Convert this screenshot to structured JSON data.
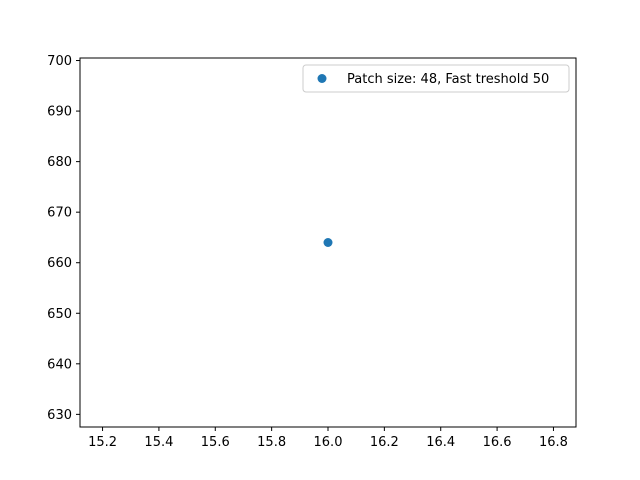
{
  "chart_data": {
    "type": "scatter",
    "title": "",
    "xlabel": "",
    "ylabel": "",
    "xlim": [
      15.12,
      16.88
    ],
    "ylim": [
      627.5,
      700.5
    ],
    "xticks": [
      15.2,
      15.4,
      15.6,
      15.8,
      16.0,
      16.2,
      16.4,
      16.6,
      16.8
    ],
    "xtick_labels": [
      "15.2",
      "15.4",
      "15.6",
      "15.8",
      "16.0",
      "16.2",
      "16.4",
      "16.6",
      "16.8"
    ],
    "yticks": [
      630,
      640,
      650,
      660,
      670,
      680,
      690,
      700
    ],
    "ytick_labels": [
      "630",
      "640",
      "650",
      "660",
      "670",
      "680",
      "690",
      "700"
    ],
    "grid": false,
    "legend_position": "top-right",
    "series": [
      {
        "name": "Patch size: 48, Fast treshold 50",
        "color": "#1f77b4",
        "points": [
          {
            "x": 16.0,
            "y": 664
          }
        ]
      }
    ]
  }
}
